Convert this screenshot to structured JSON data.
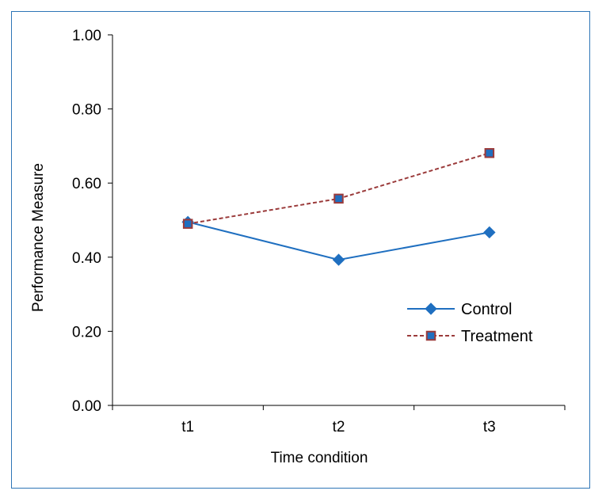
{
  "chart_data": {
    "type": "line",
    "title": "",
    "xlabel": "Time condition",
    "ylabel": "Performance Measure",
    "categories": [
      "t1",
      "t2",
      "t3"
    ],
    "ylim": [
      0,
      1
    ],
    "yticks": [
      "0.00",
      "0.20",
      "0.40",
      "0.60",
      "0.80",
      "1.00"
    ],
    "grid": false,
    "legend_position": "right",
    "series": [
      {
        "name": "Control",
        "values": [
          0.495,
          0.393,
          0.467
        ],
        "color": "#1F6FC0",
        "line_style": "solid",
        "marker": "diamond-icon"
      },
      {
        "name": "Treatment",
        "values": [
          0.49,
          0.558,
          0.681
        ],
        "color": "#9B3B3B",
        "marker_fill": "#1F6FC0",
        "line_style": "dashed",
        "marker": "square-icon"
      }
    ]
  }
}
